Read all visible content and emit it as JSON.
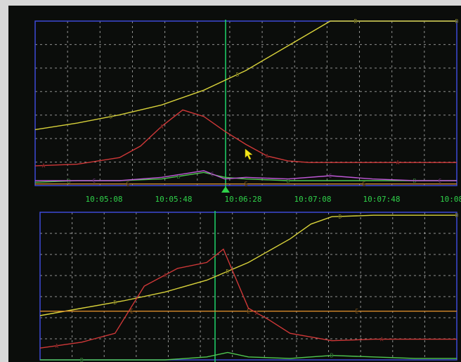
{
  "colors": {
    "background": "#0b0d0b",
    "bezel": "#d8d8d8",
    "frame": "#3d49d6",
    "grid": "#bdbdbd",
    "cursor": "#1ed36a",
    "time_label": "#2fd24a",
    "pointer": "#f2e51a"
  },
  "cursor_marker_icon": "triangle-up-icon",
  "pointer_icon": "arrow-pointer-icon",
  "chart_data": [
    {
      "type": "line",
      "x_ticks": [
        "10:05:08",
        "10:05:48",
        "10:06:28",
        "10:07:08",
        "10:07:48",
        "10:08:"
      ],
      "cursor_time": "10:06:28",
      "grid": true,
      "series": [
        {
          "marker": "D",
          "color": "#d8d23a",
          "x": [
            0,
            10,
            20,
            30,
            40,
            50,
            60,
            70,
            80,
            90,
            100
          ],
          "values": [
            0.34,
            0.38,
            0.43,
            0.49,
            0.58,
            0.7,
            0.85,
            1.0,
            1.0,
            1.0,
            1.0
          ],
          "marker_positions": [
            18,
            48,
            76,
            100
          ]
        },
        {
          "marker": "A",
          "color": "#d03838",
          "x": [
            0,
            10,
            20,
            25,
            30,
            35,
            40,
            45,
            50,
            55,
            60,
            65,
            70,
            80,
            90,
            100
          ],
          "values": [
            0.12,
            0.13,
            0.17,
            0.24,
            0.36,
            0.46,
            0.42,
            0.33,
            0.25,
            0.18,
            0.15,
            0.14,
            0.14,
            0.14,
            0.14,
            0.14
          ],
          "marker_positions": [
            2,
            30,
            55,
            86
          ]
        },
        {
          "marker": "B",
          "color": "#50c850",
          "x": [
            0,
            10,
            20,
            30,
            40,
            45,
            50,
            60,
            70,
            80,
            90,
            100
          ],
          "values": [
            0.02,
            0.03,
            0.03,
            0.04,
            0.08,
            0.05,
            0.04,
            0.03,
            0.03,
            0.03,
            0.03,
            0.03
          ],
          "marker_positions": [
            8,
            34,
            60,
            90
          ]
        },
        {
          "marker": "C",
          "color": "#c058d8",
          "x": [
            0,
            10,
            20,
            30,
            40,
            45,
            50,
            60,
            70,
            80,
            90,
            100
          ],
          "values": [
            0.03,
            0.03,
            0.03,
            0.05,
            0.09,
            0.04,
            0.05,
            0.04,
            0.06,
            0.04,
            0.03,
            0.03
          ],
          "marker_positions": [
            14,
            42,
            70,
            96
          ]
        },
        {
          "marker": "E",
          "color": "#d08a2a",
          "x": [
            0,
            100
          ],
          "values": [
            0.01,
            0.01
          ],
          "marker_positions": [
            22,
            50,
            78
          ]
        }
      ]
    },
    {
      "type": "line",
      "x_ticks": [],
      "cursor_time": "",
      "grid": true,
      "series": [
        {
          "marker": "D",
          "color": "#d8d23a",
          "x": [
            0,
            10,
            20,
            30,
            40,
            50,
            60,
            65,
            70,
            80,
            90,
            100
          ],
          "values": [
            0.3,
            0.35,
            0.4,
            0.46,
            0.54,
            0.66,
            0.82,
            0.92,
            0.97,
            0.98,
            0.98,
            0.98
          ],
          "marker_positions": [
            18,
            45,
            72,
            100
          ]
        },
        {
          "marker": "E",
          "color": "#d88a2a",
          "x": [
            0,
            100
          ],
          "values": [
            0.33,
            0.33
          ],
          "marker_positions": [
            22,
            50,
            76
          ]
        },
        {
          "marker": "A",
          "color": "#d03838",
          "x": [
            0,
            10,
            18,
            25,
            33,
            40,
            44,
            47,
            50,
            55,
            60,
            70,
            80,
            90,
            100
          ],
          "values": [
            0.08,
            0.12,
            0.18,
            0.5,
            0.62,
            0.66,
            0.75,
            0.55,
            0.35,
            0.27,
            0.18,
            0.13,
            0.14,
            0.14,
            0.14
          ],
          "marker_positions": [
            4,
            30,
            52,
            82
          ]
        },
        {
          "marker": "B",
          "color": "#50c850",
          "x": [
            0,
            30,
            40,
            45,
            50,
            60,
            70,
            80,
            90,
            100
          ],
          "values": [
            0.0,
            0.0,
            0.02,
            0.05,
            0.02,
            0.01,
            0.03,
            0.02,
            0.01,
            0.01
          ],
          "marker_positions": [
            10,
            70
          ]
        }
      ]
    }
  ]
}
